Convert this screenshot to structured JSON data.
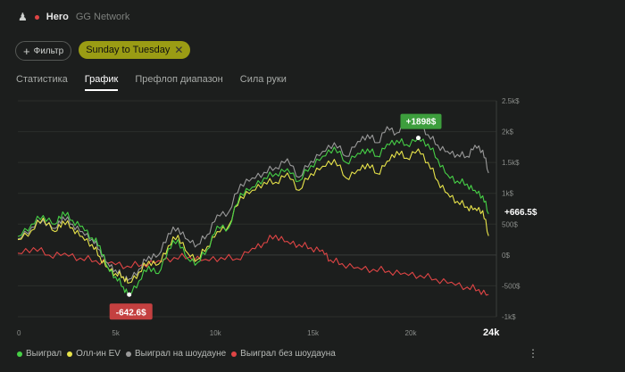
{
  "topbar": {
    "player": "Hero",
    "network": "GG Network"
  },
  "filters": {
    "add_label": "Фильтр",
    "chip_label": "Sunday to Tuesday"
  },
  "tabs": [
    {
      "label": "Статистика",
      "active": false
    },
    {
      "label": "График",
      "active": true
    },
    {
      "label": "Префлоп диапазон",
      "active": false
    },
    {
      "label": "Сила руки",
      "active": false
    }
  ],
  "colors": {
    "won": "#46d046",
    "allin_ev": "#e8e44a",
    "showdown": "#9a9a9a",
    "no_showdown": "#e04545"
  },
  "chart_data": {
    "type": "line",
    "x_ticks": [
      "0",
      "5k",
      "10k",
      "15k",
      "20k",
      "24k"
    ],
    "x_tick_values": [
      0,
      5000,
      10000,
      15000,
      20000,
      24000
    ],
    "y_ticks": [
      "2.5k$",
      "2k$",
      "1.5k$",
      "1k$",
      "500$",
      "0$",
      "-500$",
      "-1k$"
    ],
    "ylim": [
      -1000,
      2500
    ],
    "xlim": [
      0,
      24500
    ],
    "annotations": {
      "max_label": "+1898$",
      "max_x": 20500,
      "max_y": 1898,
      "min_label": "-642.6$",
      "min_x": 5700,
      "min_y": -642.6,
      "end_label": "+666.5$"
    },
    "series": [
      {
        "name": "Выиграл",
        "points": [
          [
            0,
            300
          ],
          [
            700,
            500
          ],
          [
            1300,
            640
          ],
          [
            1900,
            500
          ],
          [
            2300,
            700
          ],
          [
            2800,
            560
          ],
          [
            3300,
            470
          ],
          [
            3800,
            280
          ],
          [
            4200,
            150
          ],
          [
            4600,
            -200
          ],
          [
            5000,
            -350
          ],
          [
            5400,
            -520
          ],
          [
            5700,
            -640
          ],
          [
            6200,
            -420
          ],
          [
            6700,
            -180
          ],
          [
            7200,
            -300
          ],
          [
            7700,
            100
          ],
          [
            8200,
            250
          ],
          [
            8700,
            -60
          ],
          [
            9200,
            -120
          ],
          [
            9700,
            90
          ],
          [
            10200,
            470
          ],
          [
            10800,
            440
          ],
          [
            11400,
            1000
          ],
          [
            12000,
            1100
          ],
          [
            12600,
            1250
          ],
          [
            13200,
            1320
          ],
          [
            13800,
            1400
          ],
          [
            14400,
            1200
          ],
          [
            15000,
            1450
          ],
          [
            15600,
            1600
          ],
          [
            16200,
            1750
          ],
          [
            16800,
            1500
          ],
          [
            17400,
            1650
          ],
          [
            17900,
            1720
          ],
          [
            18400,
            1600
          ],
          [
            18900,
            1800
          ],
          [
            19400,
            1860
          ],
          [
            19900,
            1790
          ],
          [
            20500,
            1898
          ],
          [
            21000,
            1800
          ],
          [
            21500,
            1550
          ],
          [
            22000,
            1300
          ],
          [
            22500,
            1200
          ],
          [
            23000,
            1150
          ],
          [
            23400,
            1050
          ],
          [
            23800,
            960
          ],
          [
            24100,
            666
          ]
        ]
      },
      {
        "name": "Олл-ин EV",
        "points": [
          [
            0,
            250
          ],
          [
            700,
            400
          ],
          [
            1300,
            600
          ],
          [
            1900,
            380
          ],
          [
            2300,
            550
          ],
          [
            2800,
            440
          ],
          [
            3300,
            300
          ],
          [
            3800,
            170
          ],
          [
            4200,
            -30
          ],
          [
            4600,
            -200
          ],
          [
            5000,
            -300
          ],
          [
            5400,
            -350
          ],
          [
            5700,
            -450
          ],
          [
            6200,
            -280
          ],
          [
            6700,
            -100
          ],
          [
            7200,
            -150
          ],
          [
            7700,
            150
          ],
          [
            8200,
            320
          ],
          [
            8700,
            30
          ],
          [
            9200,
            -70
          ],
          [
            9700,
            140
          ],
          [
            10200,
            380
          ],
          [
            10800,
            480
          ],
          [
            11400,
            950
          ],
          [
            12000,
            1050
          ],
          [
            12600,
            1180
          ],
          [
            13200,
            1180
          ],
          [
            13800,
            1330
          ],
          [
            14400,
            1050
          ],
          [
            15000,
            1320
          ],
          [
            15600,
            1440
          ],
          [
            16200,
            1550
          ],
          [
            16800,
            1250
          ],
          [
            17400,
            1380
          ],
          [
            17900,
            1480
          ],
          [
            18400,
            1320
          ],
          [
            18900,
            1520
          ],
          [
            19400,
            1680
          ],
          [
            19900,
            1570
          ],
          [
            20500,
            1720
          ],
          [
            21000,
            1500
          ],
          [
            21500,
            1200
          ],
          [
            22000,
            1000
          ],
          [
            22500,
            870
          ],
          [
            23000,
            780
          ],
          [
            23400,
            760
          ],
          [
            23800,
            720
          ],
          [
            24100,
            310
          ]
        ]
      },
      {
        "name": "Выиграл на шоудауне",
        "points": [
          [
            0,
            260
          ],
          [
            700,
            450
          ],
          [
            1300,
            570
          ],
          [
            1900,
            430
          ],
          [
            2300,
            620
          ],
          [
            2800,
            500
          ],
          [
            3300,
            380
          ],
          [
            3800,
            260
          ],
          [
            4200,
            80
          ],
          [
            4600,
            -130
          ],
          [
            5000,
            -240
          ],
          [
            5400,
            -360
          ],
          [
            5700,
            -390
          ],
          [
            6200,
            -230
          ],
          [
            6700,
            -20
          ],
          [
            7200,
            0
          ],
          [
            7700,
            350
          ],
          [
            8200,
            440
          ],
          [
            8700,
            250
          ],
          [
            9200,
            170
          ],
          [
            9700,
            330
          ],
          [
            10200,
            650
          ],
          [
            10800,
            700
          ],
          [
            11400,
            1150
          ],
          [
            12000,
            1250
          ],
          [
            12600,
            1340
          ],
          [
            13200,
            1420
          ],
          [
            13800,
            1560
          ],
          [
            14400,
            1260
          ],
          [
            15000,
            1520
          ],
          [
            15600,
            1680
          ],
          [
            16200,
            1820
          ],
          [
            16800,
            1600
          ],
          [
            17400,
            1840
          ],
          [
            17900,
            1950
          ],
          [
            18400,
            1820
          ],
          [
            18900,
            2080
          ],
          [
            19400,
            1980
          ],
          [
            19900,
            2130
          ],
          [
            20500,
            2200
          ],
          [
            21000,
            1950
          ],
          [
            21500,
            1780
          ],
          [
            22000,
            1680
          ],
          [
            22500,
            1630
          ],
          [
            23000,
            1600
          ],
          [
            23400,
            1780
          ],
          [
            23800,
            1700
          ],
          [
            24100,
            1330
          ]
        ]
      },
      {
        "name": "Выиграл без шоудауна",
        "points": [
          [
            0,
            30
          ],
          [
            800,
            120
          ],
          [
            1600,
            0
          ],
          [
            2400,
            30
          ],
          [
            3200,
            -50
          ],
          [
            4000,
            -90
          ],
          [
            4800,
            -110
          ],
          [
            5600,
            -180
          ],
          [
            6400,
            -150
          ],
          [
            7200,
            -90
          ],
          [
            8000,
            -40
          ],
          [
            8800,
            -30
          ],
          [
            9600,
            -70
          ],
          [
            10400,
            -40
          ],
          [
            11200,
            -60
          ],
          [
            12000,
            110
          ],
          [
            12600,
            200
          ],
          [
            13200,
            320
          ],
          [
            13800,
            220
          ],
          [
            14400,
            170
          ],
          [
            15000,
            120
          ],
          [
            15600,
            80
          ],
          [
            16000,
            -80
          ],
          [
            16600,
            -140
          ],
          [
            17400,
            -200
          ],
          [
            18200,
            -230
          ],
          [
            19000,
            -260
          ],
          [
            19800,
            -290
          ],
          [
            20600,
            -330
          ],
          [
            21400,
            -390
          ],
          [
            22200,
            -440
          ],
          [
            23000,
            -520
          ],
          [
            23600,
            -560
          ],
          [
            24100,
            -640
          ]
        ]
      }
    ]
  }
}
